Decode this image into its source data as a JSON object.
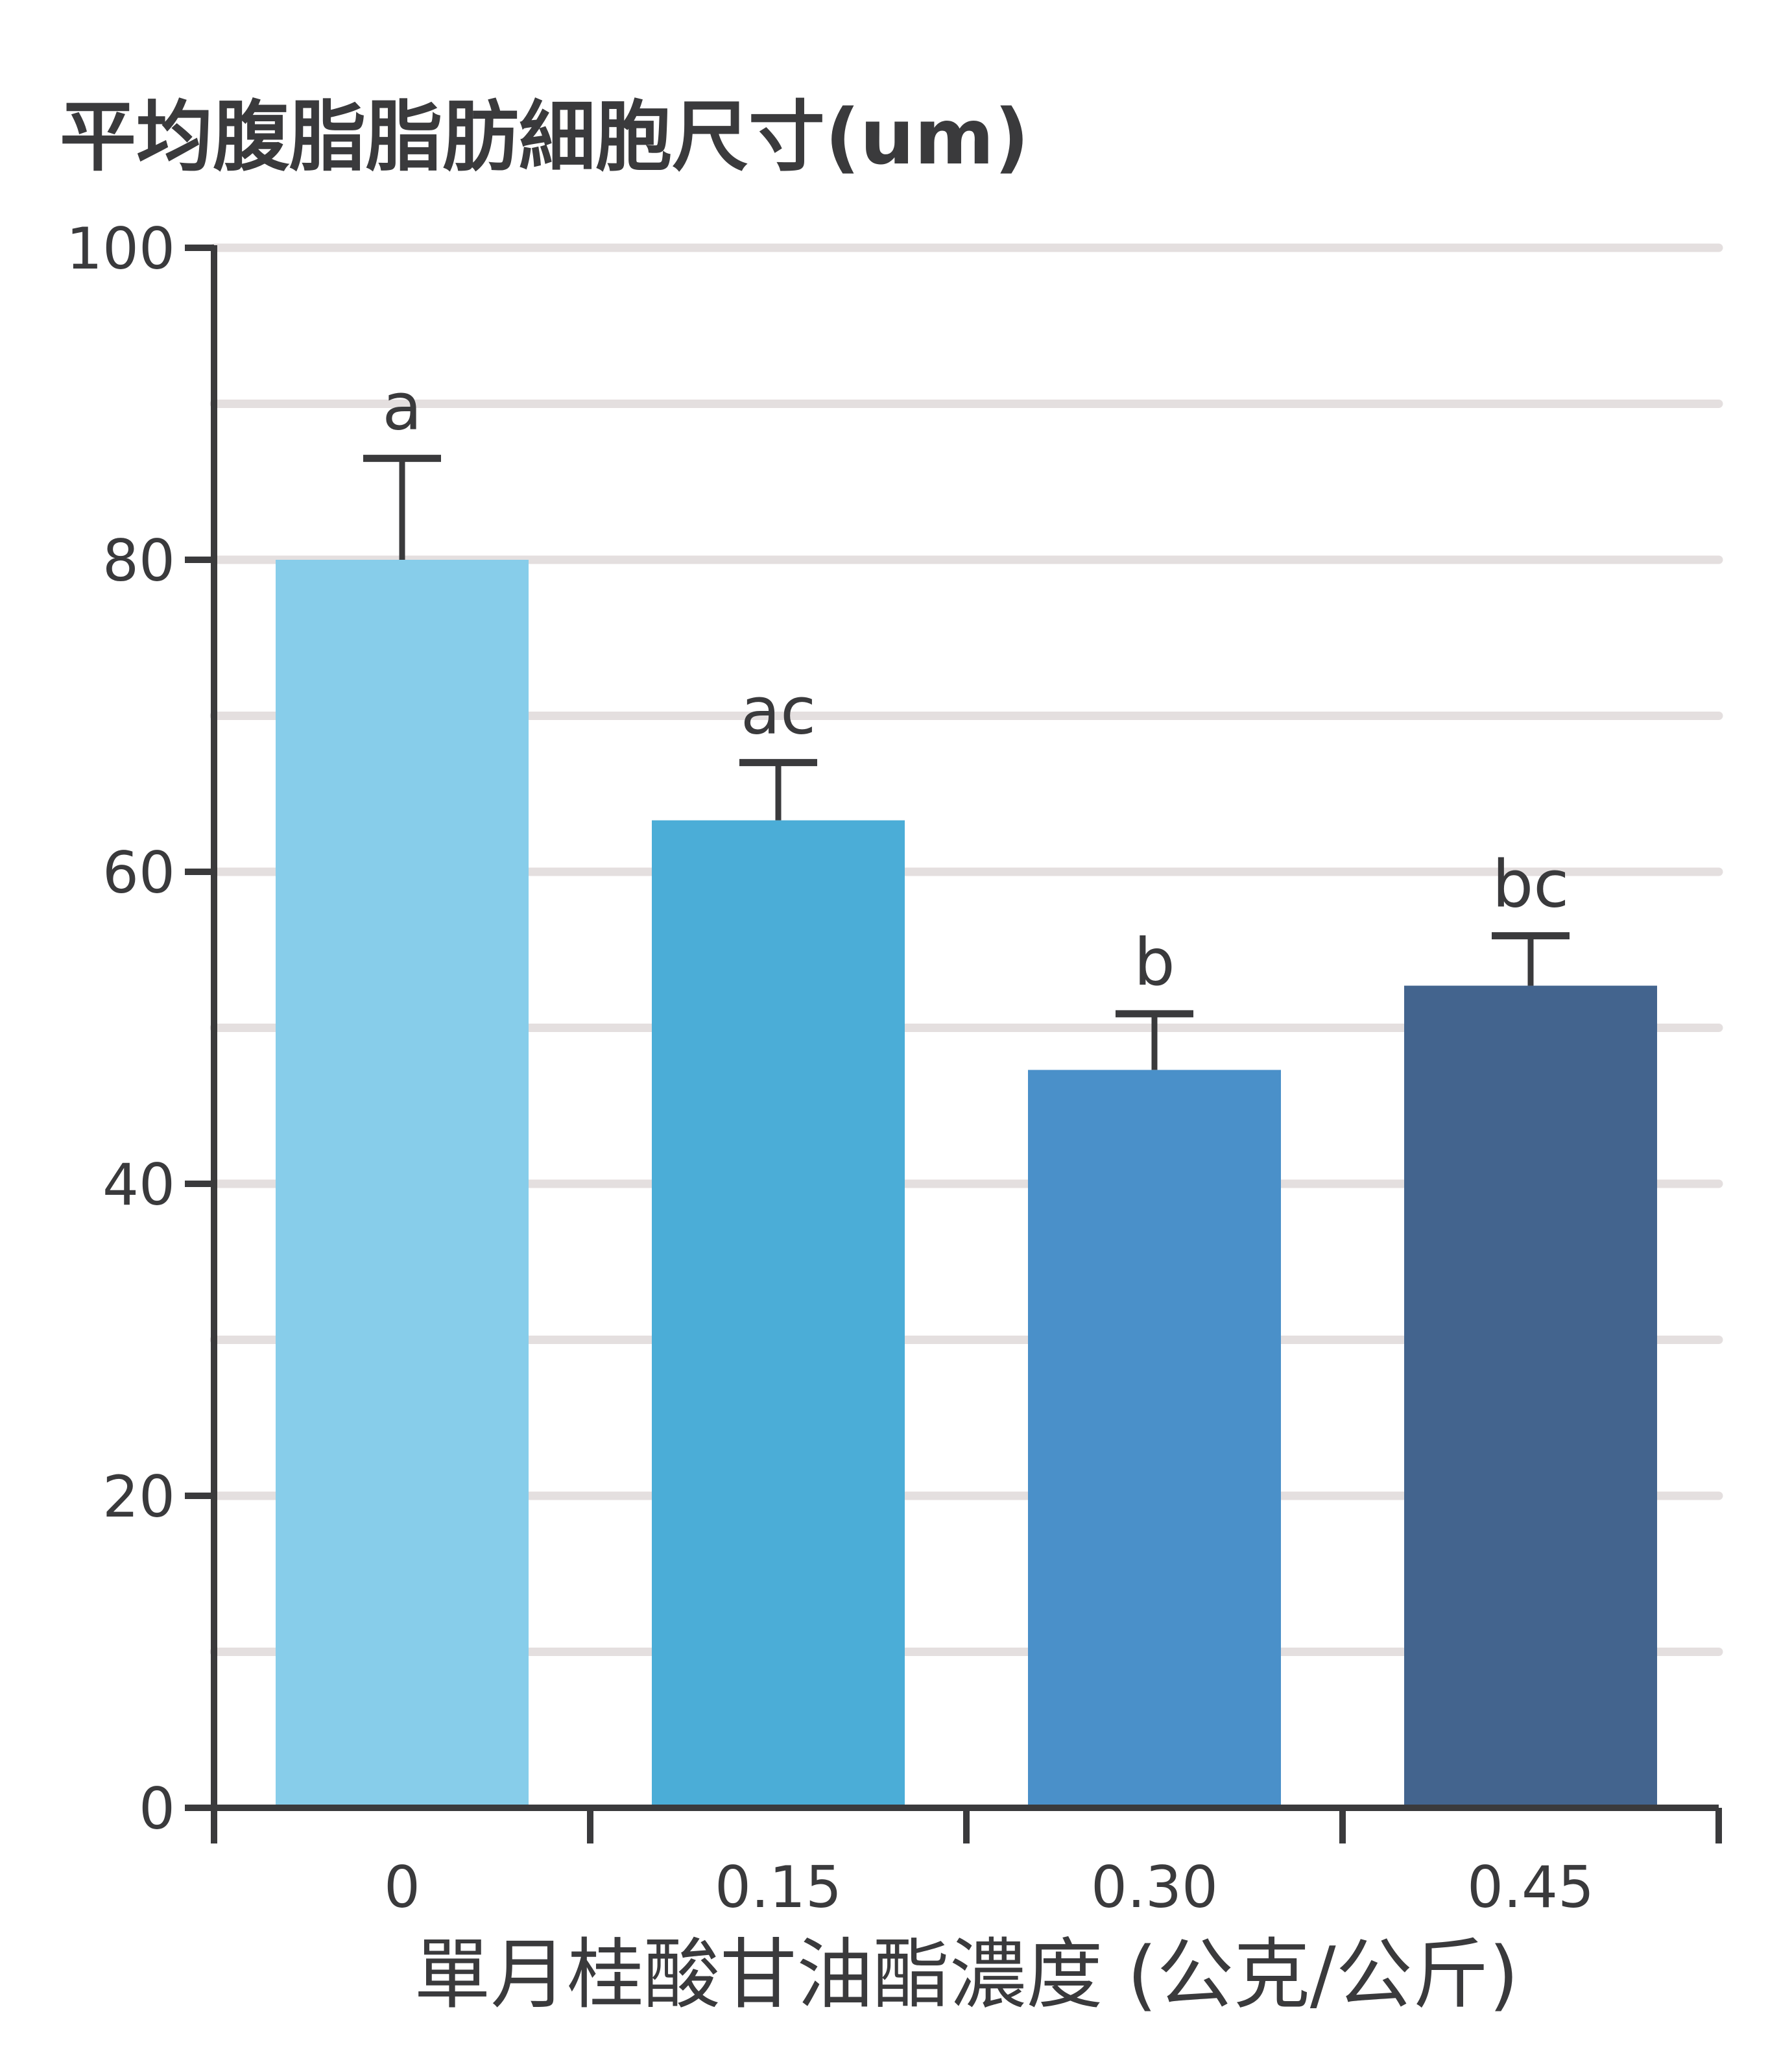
{
  "chart_data": {
    "type": "bar",
    "title": "平均腹脂脂肪細胞尺寸(um)",
    "xlabel": "單月桂酸甘油酯濃度 (公克/公斤)",
    "ylabel": "",
    "categories": [
      "0",
      "0.15",
      "0.30",
      "0.45"
    ],
    "values": [
      80,
      63.3,
      47.3,
      52.7
    ],
    "error_plus": [
      6.5,
      3.7,
      3.6,
      3.2
    ],
    "significance_labels": [
      "a",
      "ac",
      "b",
      "bc"
    ],
    "bar_colors": [
      "#87cdea",
      "#4badd7",
      "#4a90c9",
      "#43648e"
    ],
    "ylim": [
      0,
      100
    ],
    "yticks": [
      0,
      20,
      40,
      60,
      80,
      100
    ],
    "grid_lines": [
      10,
      20,
      30,
      40,
      50,
      60,
      70,
      80,
      90,
      100
    ],
    "grid": true,
    "legend": "none",
    "colors": {
      "axis": "#3a3a3c",
      "grid": "#e4dfdf",
      "text": "#3a3a3c"
    }
  }
}
